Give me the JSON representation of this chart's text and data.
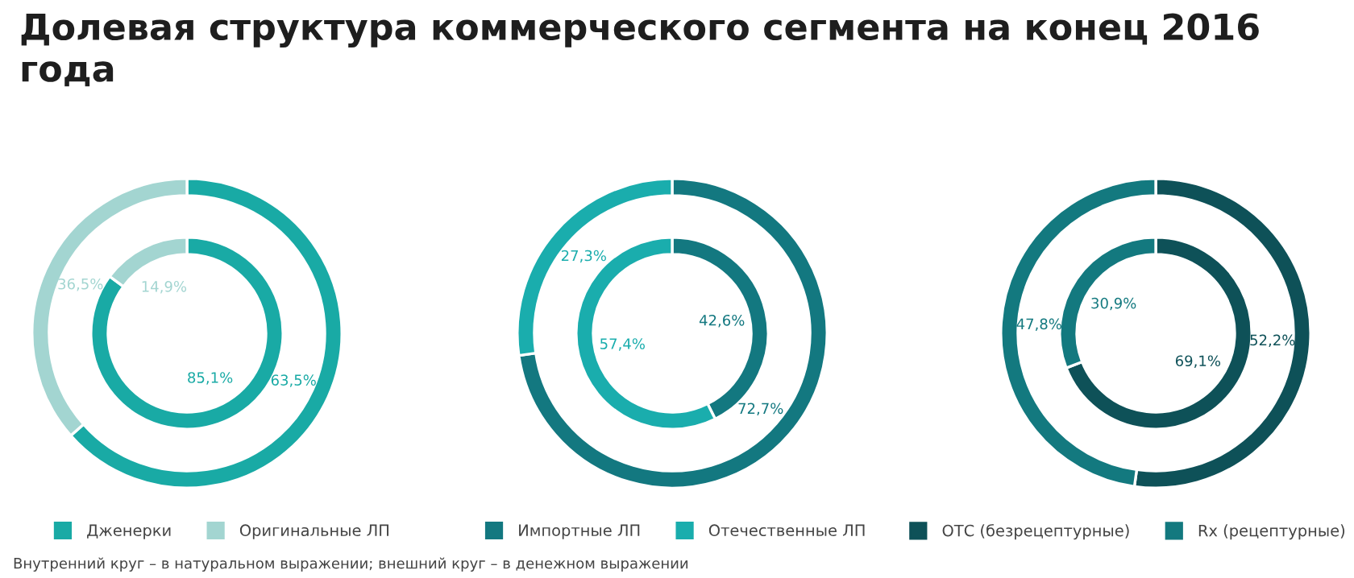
{
  "chart_data": [
    {
      "type": "donut",
      "title": "Долевая структура коммерческого сегмента на конец 2016 года",
      "categories": [
        "Дженерки",
        "Оригинальные ЛП"
      ],
      "colors": [
        "#19aaa5",
        "#a3d5d1"
      ],
      "series": [
        {
          "values": [
            85.1,
            14.9
          ],
          "value_labels": [
            "85,1%",
            "14,9%"
          ]
        },
        {
          "values": [
            63.5,
            36.5
          ],
          "value_labels": [
            "63,5%",
            "36,5%"
          ]
        }
      ],
      "legend": "bottom",
      "annotations": [
        "Внутренний круг – в натуральном выражении; внешний круг – в денежном выражении"
      ]
    },
    {
      "type": "donut",
      "categories": [
        "Импортные ЛП",
        "Отечественные ЛП"
      ],
      "colors": [
        "#137880",
        "#1aadad"
      ],
      "series": [
        {
          "values": [
            42.6,
            57.4
          ],
          "value_labels": [
            "42,6%",
            "57,4%"
          ]
        },
        {
          "values": [
            72.7,
            27.3
          ],
          "value_labels": [
            "72,7%",
            "27,3%"
          ]
        }
      ],
      "legend": "bottom"
    },
    {
      "type": "donut",
      "categories": [
        "ОТС (безрецептурные)",
        "Rx (рецептурные)"
      ],
      "colors": [
        "#0e5158",
        "#13797f"
      ],
      "series": [
        {
          "values": [
            69.1,
            30.9
          ],
          "value_labels": [
            "69,1%",
            "30,9%"
          ]
        },
        {
          "values": [
            52.2,
            47.8
          ],
          "value_labels": [
            "52,2%",
            "47,8%"
          ]
        }
      ],
      "legend": "bottom"
    }
  ]
}
